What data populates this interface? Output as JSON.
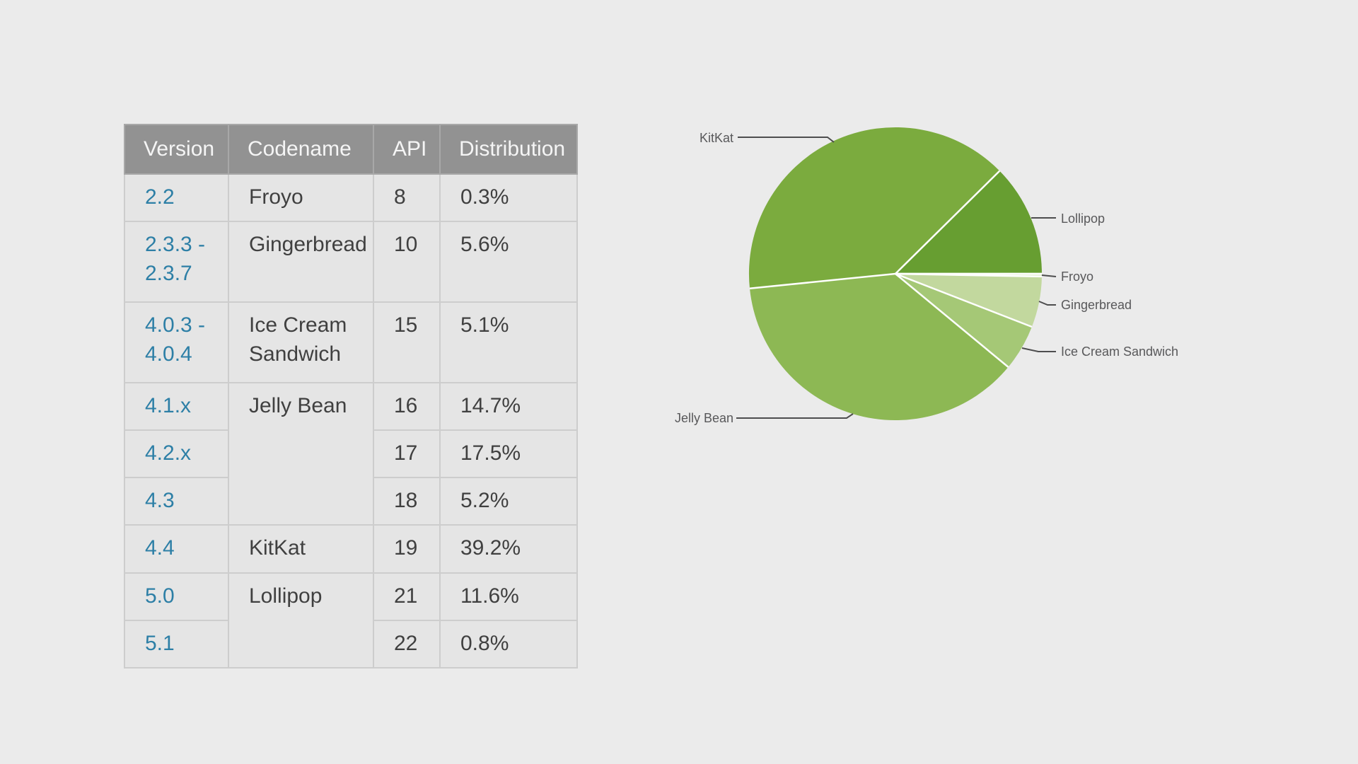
{
  "page": {
    "background_color": "#ebebeb"
  },
  "table": {
    "headers": {
      "version": "Version",
      "codename": "Codename",
      "api": "API",
      "distribution": "Distribution"
    },
    "rows": [
      {
        "version": "2.2",
        "codename": "Froyo",
        "api": "8",
        "distribution": "0.3%"
      },
      {
        "version": "2.3.3 - 2.3.7",
        "codename": "Gingerbread",
        "api": "10",
        "distribution": "5.6%"
      },
      {
        "version": "4.0.3 - 4.0.4",
        "codename": "Ice Cream Sandwich",
        "api": "15",
        "distribution": "5.1%"
      },
      {
        "version": "4.1.x",
        "codename": "Jelly Bean",
        "api": "16",
        "distribution": "14.7%"
      },
      {
        "version": "4.2.x",
        "api": "17",
        "distribution": "17.5%"
      },
      {
        "version": "4.3",
        "api": "18",
        "distribution": "5.2%"
      },
      {
        "version": "4.4",
        "codename": "KitKat",
        "api": "19",
        "distribution": "39.2%"
      },
      {
        "version": "5.0",
        "codename": "Lollipop",
        "api": "21",
        "distribution": "11.6%"
      },
      {
        "version": "5.1",
        "api": "22",
        "distribution": "0.8%"
      }
    ],
    "link_color": "#2d7fa6",
    "header_bg": "#929292"
  },
  "chart_data": {
    "type": "pie",
    "title": "",
    "start_angle": "east",
    "direction": "clockwise",
    "labels_style": "outside callout lines",
    "slice_border_color": "#ffffff",
    "series": [
      {
        "label": "Froyo",
        "value": 0.3,
        "color": "#dcebc8"
      },
      {
        "label": "Gingerbread",
        "value": 5.6,
        "color": "#c2d89e"
      },
      {
        "label": "Ice Cream Sandwich",
        "value": 5.1,
        "color": "#a5c876"
      },
      {
        "label": "Jelly Bean",
        "value": 37.4,
        "color": "#8db854"
      },
      {
        "label": "KitKat",
        "value": 39.2,
        "color": "#7bab3e"
      },
      {
        "label": "Lollipop",
        "value": 12.4,
        "color": "#679e31"
      }
    ]
  }
}
